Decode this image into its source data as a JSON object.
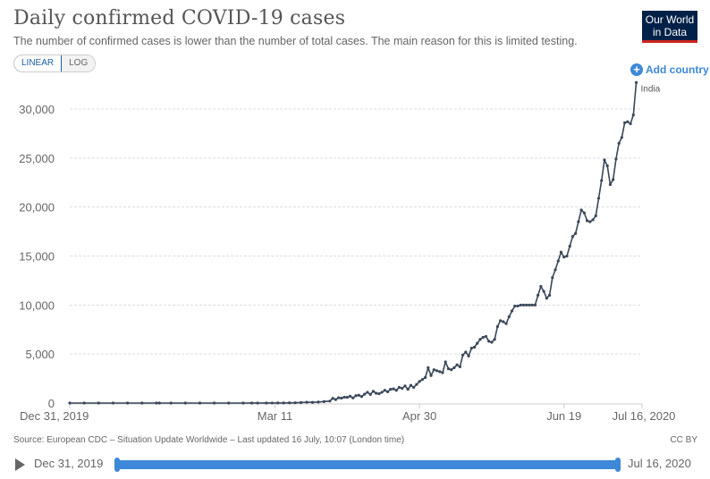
{
  "header": {
    "title": "Daily confirmed COVID-19 cases",
    "subtitle": "The number of confirmed cases is lower than the number of total cases. The main reason for this is limited testing.",
    "scale_options": [
      "LINEAR",
      "LOG"
    ],
    "scale_selected": "LINEAR",
    "logo_line1": "Our World",
    "logo_line2": "in Data",
    "add_country_label": "Add country",
    "add_country_icon": "plus-circle-icon"
  },
  "colors": {
    "series": "#3a4759",
    "accent": "#3d88d8",
    "logo_bg": "#002147",
    "logo_stripe": "#ce261e"
  },
  "chart_data": {
    "type": "line",
    "title": "Daily confirmed COVID-19 cases",
    "xlabel": "",
    "ylabel": "",
    "x_start": "Dec 31, 2019",
    "x_end": "Jul 16, 2020",
    "x_range_days": [
      0,
      198
    ],
    "ylim": [
      0,
      30000
    ],
    "grid": true,
    "y_ticks": [
      0,
      5000,
      10000,
      15000,
      20000,
      25000,
      30000
    ],
    "y_tick_labels": [
      "0",
      "5,000",
      "10,000",
      "15,000",
      "20,000",
      "25,000",
      "30,000"
    ],
    "x_ticks": [
      {
        "day": 0,
        "label": "Dec 31, 2019"
      },
      {
        "day": 71,
        "label": "Mar 11"
      },
      {
        "day": 121,
        "label": "Apr 30"
      },
      {
        "day": 171,
        "label": "Jun 19"
      },
      {
        "day": 198,
        "label": "Jul 16, 2020"
      }
    ],
    "series": [
      {
        "name": "India",
        "points": [
          [
            0,
            0
          ],
          [
            5,
            0
          ],
          [
            10,
            0
          ],
          [
            15,
            0
          ],
          [
            20,
            0
          ],
          [
            25,
            0
          ],
          [
            30,
            0
          ],
          [
            31,
            1
          ],
          [
            35,
            0
          ],
          [
            40,
            0
          ],
          [
            45,
            0
          ],
          [
            50,
            0
          ],
          [
            55,
            0
          ],
          [
            60,
            0
          ],
          [
            63,
            2
          ],
          [
            65,
            1
          ],
          [
            68,
            5
          ],
          [
            70,
            6
          ],
          [
            72,
            10
          ],
          [
            74,
            8
          ],
          [
            76,
            20
          ],
          [
            78,
            30
          ],
          [
            80,
            50
          ],
          [
            82,
            80
          ],
          [
            84,
            70
          ],
          [
            86,
            100
          ],
          [
            88,
            150
          ],
          [
            90,
            200
          ],
          [
            91,
            480
          ],
          [
            92,
            350
          ],
          [
            93,
            540
          ],
          [
            94,
            500
          ],
          [
            95,
            600
          ],
          [
            96,
            580
          ],
          [
            97,
            700
          ],
          [
            98,
            520
          ],
          [
            99,
            750
          ],
          [
            100,
            800
          ],
          [
            101,
            660
          ],
          [
            102,
            900
          ],
          [
            103,
            1100
          ],
          [
            104,
            880
          ],
          [
            105,
            1200
          ],
          [
            106,
            1000
          ],
          [
            107,
            950
          ],
          [
            108,
            1100
          ],
          [
            109,
            1300
          ],
          [
            110,
            1150
          ],
          [
            111,
            1400
          ],
          [
            112,
            1450
          ],
          [
            113,
            1300
          ],
          [
            114,
            1600
          ],
          [
            115,
            1500
          ],
          [
            116,
            1750
          ],
          [
            117,
            1400
          ],
          [
            118,
            1800
          ],
          [
            119,
            1600
          ],
          [
            120,
            1900
          ],
          [
            121,
            2200
          ],
          [
            122,
            2400
          ],
          [
            123,
            2600
          ],
          [
            124,
            3600
          ],
          [
            125,
            2800
          ],
          [
            126,
            3400
          ],
          [
            127,
            3300
          ],
          [
            128,
            3200
          ],
          [
            129,
            3100
          ],
          [
            130,
            4200
          ],
          [
            131,
            3500
          ],
          [
            132,
            3400
          ],
          [
            133,
            3600
          ],
          [
            134,
            3900
          ],
          [
            135,
            3700
          ],
          [
            136,
            4900
          ],
          [
            137,
            5200
          ],
          [
            138,
            4800
          ],
          [
            139,
            5600
          ],
          [
            140,
            5700
          ],
          [
            141,
            6100
          ],
          [
            142,
            6500
          ],
          [
            143,
            6700
          ],
          [
            144,
            6800
          ],
          [
            145,
            6300
          ],
          [
            146,
            6200
          ],
          [
            147,
            6500
          ],
          [
            148,
            7800
          ],
          [
            149,
            8400
          ],
          [
            150,
            8300
          ],
          [
            151,
            8100
          ],
          [
            152,
            8800
          ],
          [
            153,
            9400
          ],
          [
            154,
            9900
          ],
          [
            155,
            9900
          ],
          [
            156,
            10000
          ],
          [
            157,
            10000
          ],
          [
            158,
            10000
          ],
          [
            159,
            10000
          ],
          [
            160,
            10000
          ],
          [
            161,
            10000
          ],
          [
            162,
            11000
          ],
          [
            163,
            11900
          ],
          [
            164,
            11400
          ],
          [
            165,
            10700
          ],
          [
            166,
            11000
          ],
          [
            167,
            12800
          ],
          [
            168,
            13600
          ],
          [
            169,
            14500
          ],
          [
            170,
            15400
          ],
          [
            171,
            14900
          ],
          [
            172,
            15000
          ],
          [
            173,
            16000
          ],
          [
            174,
            17000
          ],
          [
            175,
            17300
          ],
          [
            176,
            18500
          ],
          [
            177,
            19700
          ],
          [
            178,
            19400
          ],
          [
            179,
            18600
          ],
          [
            180,
            18500
          ],
          [
            181,
            18700
          ],
          [
            182,
            19100
          ],
          [
            183,
            20900
          ],
          [
            184,
            22700
          ],
          [
            185,
            24800
          ],
          [
            186,
            24200
          ],
          [
            187,
            22300
          ],
          [
            188,
            22800
          ],
          [
            189,
            24900
          ],
          [
            190,
            26500
          ],
          [
            191,
            27100
          ],
          [
            192,
            28600
          ],
          [
            193,
            28700
          ],
          [
            194,
            28500
          ],
          [
            195,
            29400
          ],
          [
            196,
            32700
          ]
        ],
        "end_label": "India"
      }
    ]
  },
  "footer": {
    "source": "Source: European CDC – Situation Update Worldwide – Last updated 16 July, 10:07 (London time)",
    "license": "CC BY"
  },
  "timeline": {
    "start_label": "Dec 31, 2019",
    "end_label": "Jul 16, 2020",
    "selected_start_fraction": 0,
    "selected_end_fraction": 1,
    "play_icon": "play-icon"
  }
}
